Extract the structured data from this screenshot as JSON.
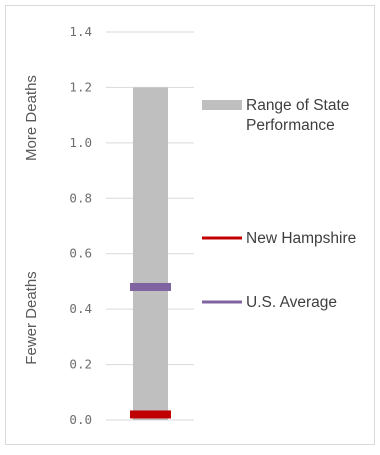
{
  "chart_data": {
    "type": "bar",
    "ylim": [
      0,
      1.4
    ],
    "yticks": [
      "0.0",
      "0.2",
      "0.4",
      "0.6",
      "0.8",
      "1.0",
      "1.2",
      "1.4"
    ],
    "ytick_values": [
      0,
      0.2,
      0.4,
      0.6,
      0.8,
      1.0,
      1.2,
      1.4
    ],
    "grid": true,
    "ylabel_top": "More Deaths",
    "ylabel_bottom": "Fewer Deaths",
    "series": [
      {
        "name": "Range of State Performance",
        "type": "range",
        "low": 0.0,
        "high": 1.2,
        "color": "#bfbfbf"
      },
      {
        "name": "New Hampshire",
        "type": "marker",
        "value": 0.02,
        "color": "#c00000"
      },
      {
        "name": "U.S. Average",
        "type": "marker",
        "value": 0.48,
        "color": "#8064a2"
      }
    ],
    "legend": [
      {
        "label_lines": [
          "Range of State",
          "Performance"
        ],
        "color": "#bfbfbf",
        "kind": "block"
      },
      {
        "label_lines": [
          "New Hampshire"
        ],
        "color": "#c00000",
        "kind": "line"
      },
      {
        "label_lines": [
          "U.S. Average"
        ],
        "color": "#8064a2",
        "kind": "line"
      }
    ],
    "legend_position": "right"
  }
}
